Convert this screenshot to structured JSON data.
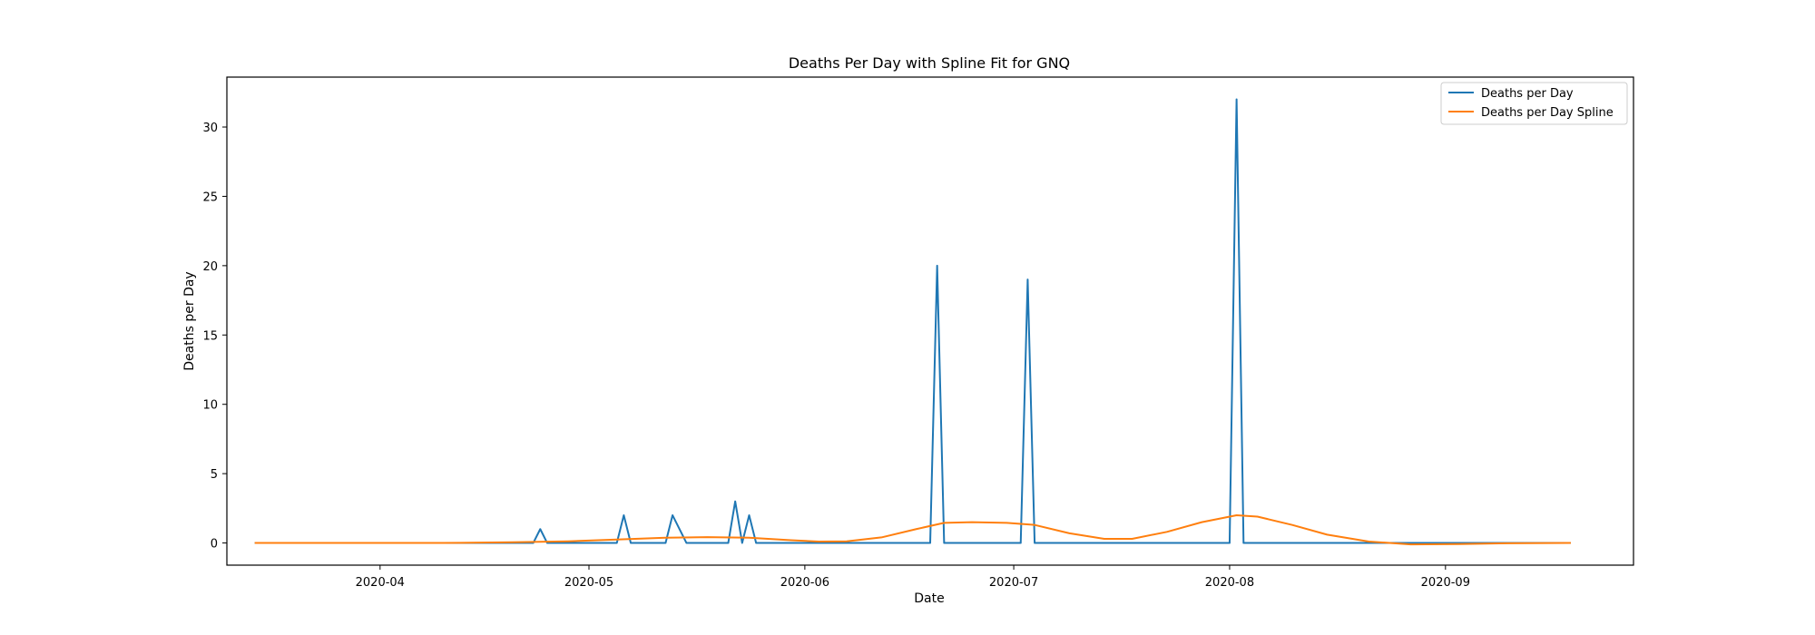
{
  "chart_data": {
    "type": "line",
    "title": "Deaths Per Day with Spline Fit for GNQ",
    "xlabel": "Date",
    "ylabel": "Deaths per Day",
    "x_tick_labels": [
      "2020-04",
      "2020-05",
      "2020-06",
      "2020-07",
      "2020-08",
      "2020-09"
    ],
    "x_tick_dates": [
      "2020-04-01",
      "2020-05-01",
      "2020-06-01",
      "2020-07-01",
      "2020-08-01",
      "2020-09-01"
    ],
    "y_ticks": [
      0,
      5,
      10,
      15,
      20,
      25,
      30
    ],
    "xlim": [
      "2020-03-10",
      "2020-09-28"
    ],
    "ylim": [
      -1.6,
      33.6
    ],
    "grid": false,
    "legend_position": "top-right",
    "series": [
      {
        "name": "Deaths per Day",
        "color": "#1f77b4",
        "points": [
          [
            "2020-03-14",
            0
          ],
          [
            "2020-04-23",
            0
          ],
          [
            "2020-04-24",
            1
          ],
          [
            "2020-04-25",
            0
          ],
          [
            "2020-05-05",
            0
          ],
          [
            "2020-05-06",
            2
          ],
          [
            "2020-05-07",
            0
          ],
          [
            "2020-05-12",
            0
          ],
          [
            "2020-05-13",
            2
          ],
          [
            "2020-05-15",
            0
          ],
          [
            "2020-05-21",
            0
          ],
          [
            "2020-05-22",
            3
          ],
          [
            "2020-05-23",
            0
          ],
          [
            "2020-05-24",
            2
          ],
          [
            "2020-05-25",
            0
          ],
          [
            "2020-06-19",
            0
          ],
          [
            "2020-06-20",
            20
          ],
          [
            "2020-06-21",
            0
          ],
          [
            "2020-07-02",
            0
          ],
          [
            "2020-07-03",
            19
          ],
          [
            "2020-07-04",
            0
          ],
          [
            "2020-08-01",
            0
          ],
          [
            "2020-08-02",
            32
          ],
          [
            "2020-08-03",
            0
          ],
          [
            "2020-09-19",
            0
          ]
        ]
      },
      {
        "name": "Deaths per Day Spline",
        "color": "#ff7f0e",
        "points": [
          [
            "2020-03-14",
            0
          ],
          [
            "2020-04-10",
            0
          ],
          [
            "2020-04-20",
            0.05
          ],
          [
            "2020-04-28",
            0.12
          ],
          [
            "2020-05-05",
            0.25
          ],
          [
            "2020-05-12",
            0.38
          ],
          [
            "2020-05-18",
            0.42
          ],
          [
            "2020-05-24",
            0.38
          ],
          [
            "2020-05-30",
            0.2
          ],
          [
            "2020-06-03",
            0.1
          ],
          [
            "2020-06-07",
            0.12
          ],
          [
            "2020-06-12",
            0.4
          ],
          [
            "2020-06-17",
            1.0
          ],
          [
            "2020-06-21",
            1.45
          ],
          [
            "2020-06-25",
            1.5
          ],
          [
            "2020-06-30",
            1.45
          ],
          [
            "2020-07-04",
            1.3
          ],
          [
            "2020-07-09",
            0.7
          ],
          [
            "2020-07-14",
            0.3
          ],
          [
            "2020-07-18",
            0.3
          ],
          [
            "2020-07-23",
            0.8
          ],
          [
            "2020-07-28",
            1.5
          ],
          [
            "2020-08-02",
            2.0
          ],
          [
            "2020-08-05",
            1.9
          ],
          [
            "2020-08-10",
            1.3
          ],
          [
            "2020-08-15",
            0.6
          ],
          [
            "2020-08-21",
            0.1
          ],
          [
            "2020-08-27",
            -0.1
          ],
          [
            "2020-09-03",
            -0.08
          ],
          [
            "2020-09-10",
            -0.02
          ],
          [
            "2020-09-19",
            0
          ]
        ]
      }
    ]
  }
}
